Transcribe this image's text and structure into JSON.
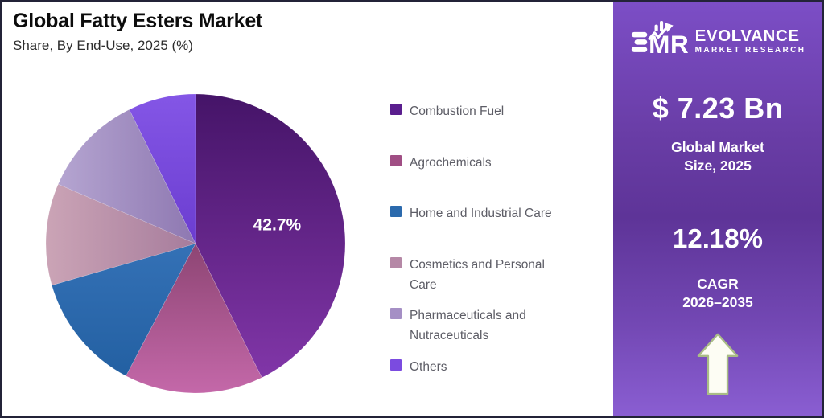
{
  "header": {
    "title": "Global Fatty Esters Market",
    "subtitle": "Share, By End-Use, 2025 (%)"
  },
  "chart_data": {
    "type": "pie",
    "title": "Global Fatty Esters Market",
    "subtitle": "Share, By End-Use, 2025 (%)",
    "unit": "%",
    "start_angle_deg": 0,
    "direction": "clockwise",
    "legend_position": "right",
    "slices": [
      {
        "label": "Combustion Fuel",
        "value": 42.7,
        "display_label": "42.7%",
        "color": "#5A1E8E",
        "color_from": "#451468",
        "color_to": "#8136A8",
        "dir": "v"
      },
      {
        "label": "Agrochemicals",
        "value": 15.0,
        "display_label": "",
        "color": "#A04E84",
        "color_from": "#8D4573",
        "color_to": "#C468A9",
        "dir": "v"
      },
      {
        "label": "Home and Industrial Care",
        "value": 12.8,
        "display_label": "",
        "color": "#2B6AAD",
        "color_from": "#3471B6",
        "color_to": "#2360A2",
        "dir": "v"
      },
      {
        "label": "Cosmetics and Personal Care",
        "value": 11.0,
        "display_label": "",
        "color": "#B588A6",
        "color_from": "#CBA4B6",
        "color_to": "#A67C9C",
        "dir": "h"
      },
      {
        "label": "Pharmaceuticals and Nutraceuticals",
        "value": 11.2,
        "display_label": "",
        "color": "#A58FC5",
        "color_from": "#B5A5D1",
        "color_to": "#8E78B1",
        "dir": "h"
      },
      {
        "label": "Others",
        "value": 7.3,
        "display_label": "",
        "color": "#7B4BE0",
        "color_from": "#8456E6",
        "color_to": "#6B3DD0",
        "dir": "v"
      }
    ]
  },
  "sidebar": {
    "logo": {
      "monogram": "EMR",
      "monogram_m": "M",
      "monogram_r": "R",
      "brand": "EVOLVANCE",
      "tagline": "MARKET RESEARCH"
    },
    "market_size": {
      "value": "$ 7.23 Bn",
      "label_line1": "Global Market",
      "label_line2": "Size, 2025"
    },
    "cagr": {
      "value": "12.18%",
      "label_line1": "CAGR",
      "label_line2": "2026–2035"
    },
    "colors": {
      "panel_gradient": [
        "#7C4EC6",
        "#693DA6",
        "#5E3498",
        "#7348B4",
        "#8A5ED2"
      ],
      "arrow_fill": "#FDFDF4",
      "arrow_stroke": "#A9BC86",
      "text": "#FFFFFF"
    }
  }
}
